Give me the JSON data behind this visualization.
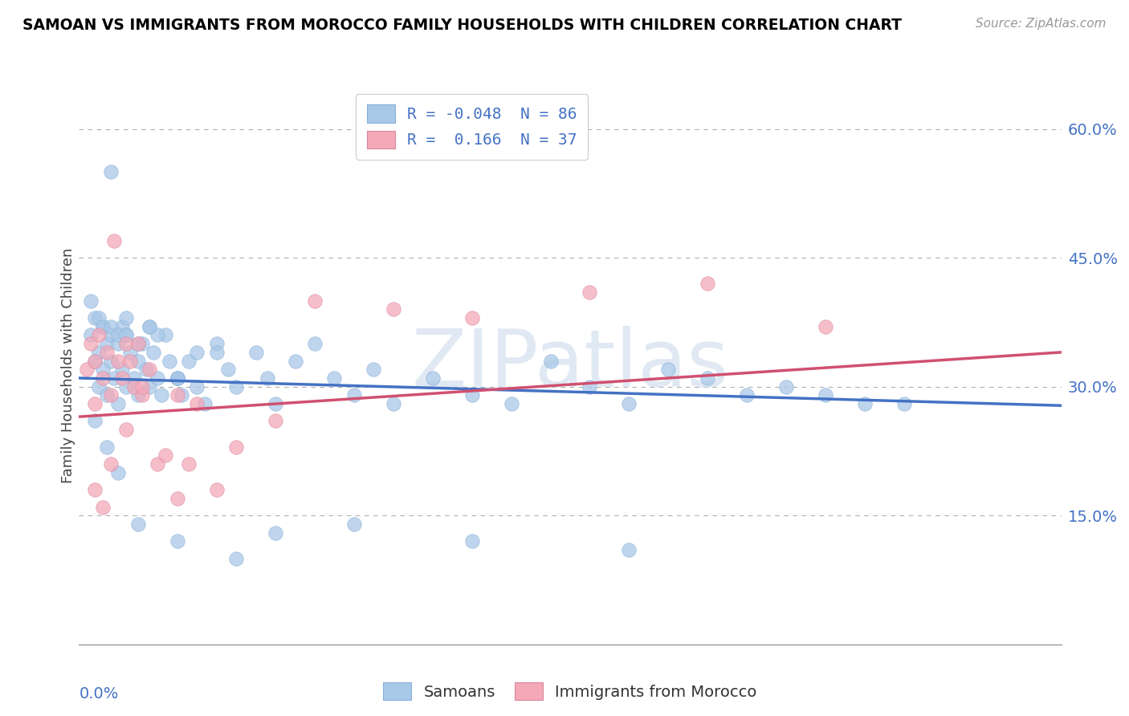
{
  "title": "SAMOAN VS IMMIGRANTS FROM MOROCCO FAMILY HOUSEHOLDS WITH CHILDREN CORRELATION CHART",
  "source": "Source: ZipAtlas.com",
  "ylabel": "Family Households with Children",
  "xlim": [
    0.0,
    0.25
  ],
  "ylim": [
    0.0,
    0.65
  ],
  "yticks": [
    0.15,
    0.3,
    0.45,
    0.6
  ],
  "ytick_labels": [
    "15.0%",
    "30.0%",
    "45.0%",
    "60.0%"
  ],
  "watermark": "ZIPatlas",
  "legend1_labels": [
    "R = -0.048  N = 86",
    "R =  0.166  N = 37"
  ],
  "samoans_color": "#a8c8e8",
  "morocco_color": "#f4a8b8",
  "trend_samoan_color": "#4472c4",
  "trend_morocco_color": "#d05070",
  "background_color": "#ffffff",
  "grid_color": "#b0b0b0",
  "axis_label_color": "#4472c4",
  "title_color": "#000000",
  "trend_sam_x0": 0.0,
  "trend_sam_y0": 0.31,
  "trend_sam_x1": 0.25,
  "trend_sam_y1": 0.278,
  "trend_mor_x0": 0.0,
  "trend_mor_y0": 0.265,
  "trend_mor_x1": 0.25,
  "trend_mor_y1": 0.34,
  "samoans_x": [
    0.003,
    0.004,
    0.004,
    0.005,
    0.005,
    0.006,
    0.006,
    0.007,
    0.007,
    0.008,
    0.008,
    0.009,
    0.01,
    0.01,
    0.011,
    0.011,
    0.012,
    0.012,
    0.013,
    0.014,
    0.015,
    0.015,
    0.016,
    0.017,
    0.018,
    0.019,
    0.02,
    0.021,
    0.022,
    0.023,
    0.025,
    0.026,
    0.028,
    0.03,
    0.032,
    0.035,
    0.038,
    0.04,
    0.045,
    0.048,
    0.05,
    0.055,
    0.06,
    0.065,
    0.07,
    0.075,
    0.08,
    0.09,
    0.1,
    0.11,
    0.12,
    0.13,
    0.14,
    0.15,
    0.16,
    0.17,
    0.18,
    0.19,
    0.2,
    0.21,
    0.003,
    0.005,
    0.006,
    0.008,
    0.01,
    0.012,
    0.015,
    0.018,
    0.02,
    0.025,
    0.03,
    0.008,
    0.012,
    0.018,
    0.025,
    0.035,
    0.05,
    0.07,
    0.1,
    0.14,
    0.004,
    0.007,
    0.01,
    0.015,
    0.025,
    0.04
  ],
  "samoans_y": [
    0.36,
    0.33,
    0.38,
    0.34,
    0.3,
    0.37,
    0.32,
    0.35,
    0.29,
    0.36,
    0.33,
    0.31,
    0.35,
    0.28,
    0.37,
    0.32,
    0.3,
    0.36,
    0.34,
    0.31,
    0.33,
    0.29,
    0.35,
    0.32,
    0.3,
    0.34,
    0.31,
    0.29,
    0.36,
    0.33,
    0.31,
    0.29,
    0.33,
    0.3,
    0.28,
    0.35,
    0.32,
    0.3,
    0.34,
    0.31,
    0.28,
    0.33,
    0.35,
    0.31,
    0.29,
    0.32,
    0.28,
    0.31,
    0.29,
    0.28,
    0.33,
    0.3,
    0.28,
    0.32,
    0.31,
    0.29,
    0.3,
    0.29,
    0.28,
    0.28,
    0.4,
    0.38,
    0.37,
    0.37,
    0.36,
    0.36,
    0.35,
    0.37,
    0.36,
    0.31,
    0.34,
    0.55,
    0.38,
    0.37,
    0.31,
    0.34,
    0.13,
    0.14,
    0.12,
    0.11,
    0.26,
    0.23,
    0.2,
    0.14,
    0.12,
    0.1
  ],
  "morocco_x": [
    0.002,
    0.003,
    0.004,
    0.004,
    0.005,
    0.006,
    0.007,
    0.008,
    0.009,
    0.01,
    0.011,
    0.012,
    0.013,
    0.014,
    0.015,
    0.016,
    0.018,
    0.02,
    0.022,
    0.025,
    0.028,
    0.03,
    0.035,
    0.04,
    0.05,
    0.06,
    0.08,
    0.1,
    0.13,
    0.16,
    0.19,
    0.004,
    0.006,
    0.008,
    0.012,
    0.016,
    0.025
  ],
  "morocco_y": [
    0.32,
    0.35,
    0.28,
    0.33,
    0.36,
    0.31,
    0.34,
    0.29,
    0.47,
    0.33,
    0.31,
    0.35,
    0.33,
    0.3,
    0.35,
    0.29,
    0.32,
    0.21,
    0.22,
    0.29,
    0.21,
    0.28,
    0.18,
    0.23,
    0.26,
    0.4,
    0.39,
    0.38,
    0.41,
    0.42,
    0.37,
    0.18,
    0.16,
    0.21,
    0.25,
    0.3,
    0.17
  ]
}
